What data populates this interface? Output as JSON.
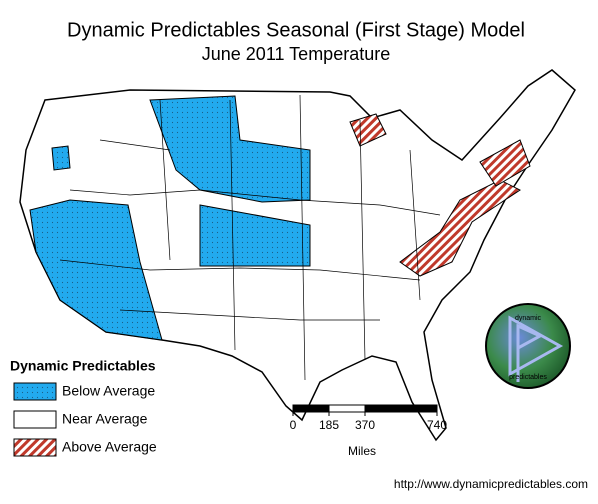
{
  "header": {
    "title": "Dynamic Predictables Seasonal (First Stage) Model",
    "subtitle": "June 2011 Temperature"
  },
  "legend": {
    "title": "Dynamic Predictables",
    "items": [
      {
        "label": "Below Average"
      },
      {
        "label": "Near Average"
      },
      {
        "label": "Above Average"
      }
    ]
  },
  "scale_bar": {
    "ticks": [
      0,
      185,
      370,
      740
    ],
    "unit": "Miles"
  },
  "logo": {
    "top_text": "dynamic",
    "bottom_text": "predictables"
  },
  "footer": {
    "url": "http://www.dynamicpredictables.com"
  }
}
